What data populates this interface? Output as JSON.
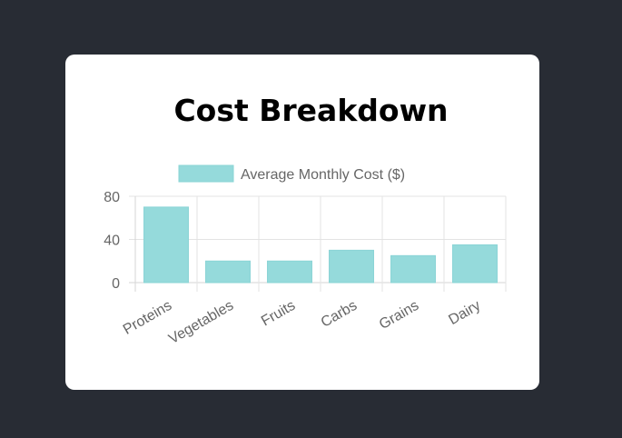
{
  "page": {
    "title": "Cost Breakdown"
  },
  "colors": {
    "background": "#282c34",
    "card": "#ffffff",
    "bar_fill": "#95dadb",
    "bar_stroke": "#8ad4d6"
  },
  "chart_data": {
    "type": "bar",
    "title": "",
    "categories": [
      "Proteins",
      "Vegetables",
      "Fruits",
      "Carbs",
      "Grains",
      "Dairy"
    ],
    "series": [
      {
        "name": "Average Monthly Cost ($)",
        "values": [
          70,
          20,
          20,
          30,
          25,
          35
        ]
      }
    ],
    "ylim": [
      0,
      80
    ],
    "yticks": [
      0,
      40,
      80
    ],
    "grid": true,
    "legend_position": "top"
  }
}
